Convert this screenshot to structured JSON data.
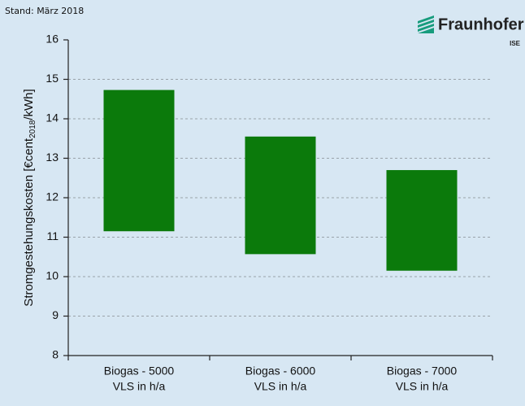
{
  "chart_data": {
    "type": "floating_bar",
    "annotation": "Stand: März 2018",
    "logo": {
      "name": "Fraunhofer",
      "unit": "ISE"
    },
    "y_label": [
      "Stromgestehungskosten [€cent",
      "2018",
      "/kWh]"
    ],
    "categories": [
      [
        "Biogas - 5000",
        "VLS in h/a"
      ],
      [
        "Biogas - 6000",
        "VLS in h/a"
      ],
      [
        "Biogas - 7000",
        "VLS in h/a"
      ]
    ],
    "low": [
      11.15,
      10.57,
      10.15
    ],
    "high": [
      14.73,
      13.55,
      12.7
    ],
    "color": "#0b7a0b",
    "ylim": [
      8,
      16
    ],
    "yticks": [
      8,
      9,
      10,
      11,
      12,
      13,
      14,
      15,
      16
    ],
    "grid": true
  }
}
